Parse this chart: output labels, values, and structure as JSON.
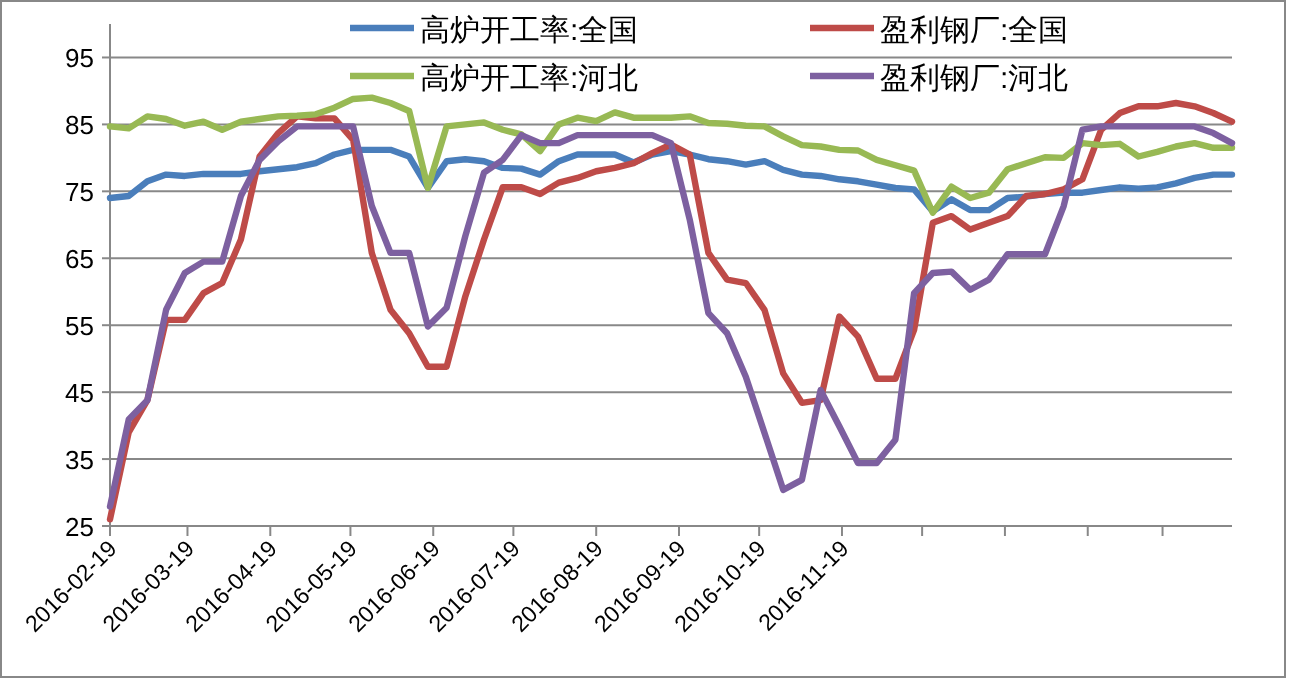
{
  "chart_data": {
    "type": "line",
    "ylim": [
      25,
      100
    ],
    "yticks": [
      25,
      35,
      45,
      55,
      65,
      75,
      85,
      95
    ],
    "grid": "y",
    "legend": "top",
    "marker": "none",
    "line_style": "solid",
    "xlim": [
      "2016-02-19",
      "2017-04-14"
    ],
    "xticks": [
      {
        "value": "2016-02-19",
        "label": "2016-02-19"
      },
      {
        "value": "2016-03-19",
        "label": "2016-03-19"
      },
      {
        "value": "2016-04-19",
        "label": "2016-04-19"
      },
      {
        "value": "2016-05-19",
        "label": "2016-05-19"
      },
      {
        "value": "2016-06-19",
        "label": "2016-06-19"
      },
      {
        "value": "2016-07-19",
        "label": "2016-07-19"
      },
      {
        "value": "2016-08-19",
        "label": "2016-08-19"
      },
      {
        "value": "2016-09-19",
        "label": "2016-09-19"
      },
      {
        "value": "2016-10-19",
        "label": "2016-10-19"
      },
      {
        "value": "2016-11-19",
        "label": "2016-11-19"
      },
      {
        "value": "2016-12-19",
        "label": null
      },
      {
        "value": "2017-01-19",
        "label": null
      },
      {
        "value": "2017-02-19",
        "label": null
      },
      {
        "value": "2017-03-19",
        "label": null
      }
    ],
    "x": [
      "2016-02-19",
      "2016-02-26",
      "2016-03-04",
      "2016-03-11",
      "2016-03-18",
      "2016-03-25",
      "2016-04-01",
      "2016-04-08",
      "2016-04-15",
      "2016-04-22",
      "2016-04-29",
      "2016-05-06",
      "2016-05-13",
      "2016-05-20",
      "2016-05-27",
      "2016-06-03",
      "2016-06-10",
      "2016-06-17",
      "2016-06-24",
      "2016-07-01",
      "2016-07-08",
      "2016-07-15",
      "2016-07-22",
      "2016-07-29",
      "2016-08-05",
      "2016-08-12",
      "2016-08-19",
      "2016-08-26",
      "2016-09-02",
      "2016-09-09",
      "2016-09-16",
      "2016-09-23",
      "2016-09-30",
      "2016-10-07",
      "2016-10-14",
      "2016-10-21",
      "2016-10-28",
      "2016-11-04",
      "2016-11-11",
      "2016-11-18",
      "2016-11-25",
      "2016-12-02",
      "2016-12-09",
      "2016-12-16",
      "2016-12-23",
      "2016-12-30",
      "2017-01-06",
      "2017-01-13",
      "2017-01-20",
      "2017-01-27",
      "2017-02-03",
      "2017-02-10",
      "2017-02-17",
      "2017-02-24",
      "2017-03-03",
      "2017-03-10",
      "2017-03-17",
      "2017-03-24",
      "2017-03-31",
      "2017-04-07",
      "2017-04-14"
    ],
    "series": [
      {
        "name": "高炉开工率:全国",
        "color": "#4a7ebb",
        "values": [
          74,
          74.3,
          76.5,
          77.5,
          77.3,
          77.6,
          77.6,
          77.6,
          78,
          78.3,
          78.6,
          79.2,
          80.5,
          81.2,
          81.2,
          81.2,
          80.2,
          75.5,
          79.5,
          79.8,
          79.5,
          78.5,
          78.4,
          77.5,
          79.5,
          80.5,
          80.5,
          80.5,
          79.3,
          80.5,
          81,
          80.5,
          79.8,
          79.5,
          79,
          79.5,
          78.2,
          77.5,
          77.3,
          76.8,
          76.5,
          76,
          75.5,
          75.3,
          72,
          73.8,
          72.2,
          72.2,
          74,
          74.2,
          74.6,
          74.8,
          74.8,
          75.2,
          75.6,
          75.4,
          75.6,
          76.2,
          77,
          77.5,
          77.5
        ]
      },
      {
        "name": "盈利钢厂:全国",
        "color": "#be4b48",
        "values": [
          26,
          39,
          43.8,
          55.8,
          55.8,
          59.8,
          61.3,
          67.8,
          80.2,
          83.7,
          86.2,
          85.9,
          85.9,
          82.7,
          65.8,
          57.3,
          53.8,
          48.8,
          48.8,
          59.3,
          67.8,
          75.6,
          75.6,
          74.6,
          76.3,
          77,
          78,
          78.5,
          79.2,
          80.7,
          82,
          80.5,
          65.8,
          61.8,
          61.3,
          57.3,
          47.8,
          43.4,
          43.8,
          56.3,
          53.3,
          47,
          47,
          54.3,
          70.3,
          71.3,
          69.3,
          70.3,
          71.3,
          74.3,
          74.6,
          75.3,
          76.8,
          84.2,
          86.7,
          87.7,
          87.7,
          88.2,
          87.7,
          86.7,
          85.4
        ]
      },
      {
        "name": "高炉开工率:河北",
        "color": "#98b954",
        "values": [
          84.7,
          84.4,
          86.2,
          85.8,
          84.8,
          85.4,
          84.2,
          85.4,
          85.8,
          86.2,
          86.3,
          86.5,
          87.5,
          88.8,
          89,
          88.2,
          87,
          75.5,
          84.7,
          85,
          85.3,
          84.2,
          83.5,
          81,
          85,
          86,
          85.5,
          86.8,
          86,
          86,
          86,
          86.2,
          85.2,
          85.1,
          84.8,
          84.7,
          83.2,
          81.9,
          81.7,
          81.2,
          81.1,
          79.7,
          78.9,
          78.1,
          71.8,
          75.7,
          74,
          74.8,
          78.3,
          79.2,
          80.1,
          80,
          82.2,
          81.9,
          82.1,
          80.2,
          80.9,
          81.7,
          82.2,
          81.5,
          81.5
        ]
      },
      {
        "name": "盈利钢厂:河北",
        "color": "#7d60a0",
        "values": [
          27.9,
          40.9,
          43.8,
          57.3,
          62.8,
          64.5,
          64.5,
          74.3,
          79.7,
          82.5,
          84.7,
          84.7,
          84.7,
          84.7,
          72.8,
          65.8,
          65.8,
          54.8,
          57.6,
          68.3,
          77.8,
          79.7,
          83.4,
          82.2,
          82.2,
          83.4,
          83.4,
          83.4,
          83.4,
          83.4,
          82.2,
          70.8,
          56.8,
          53.8,
          47.3,
          38.9,
          30.4,
          31.9,
          45.3,
          39.9,
          34.4,
          34.4,
          37.9,
          59.8,
          62.8,
          63,
          60.3,
          61.8,
          65.6,
          65.6,
          65.6,
          72.8,
          84.2,
          84.7,
          84.7,
          84.7,
          84.7,
          84.7,
          84.7,
          83.7,
          82.2
        ]
      }
    ]
  }
}
